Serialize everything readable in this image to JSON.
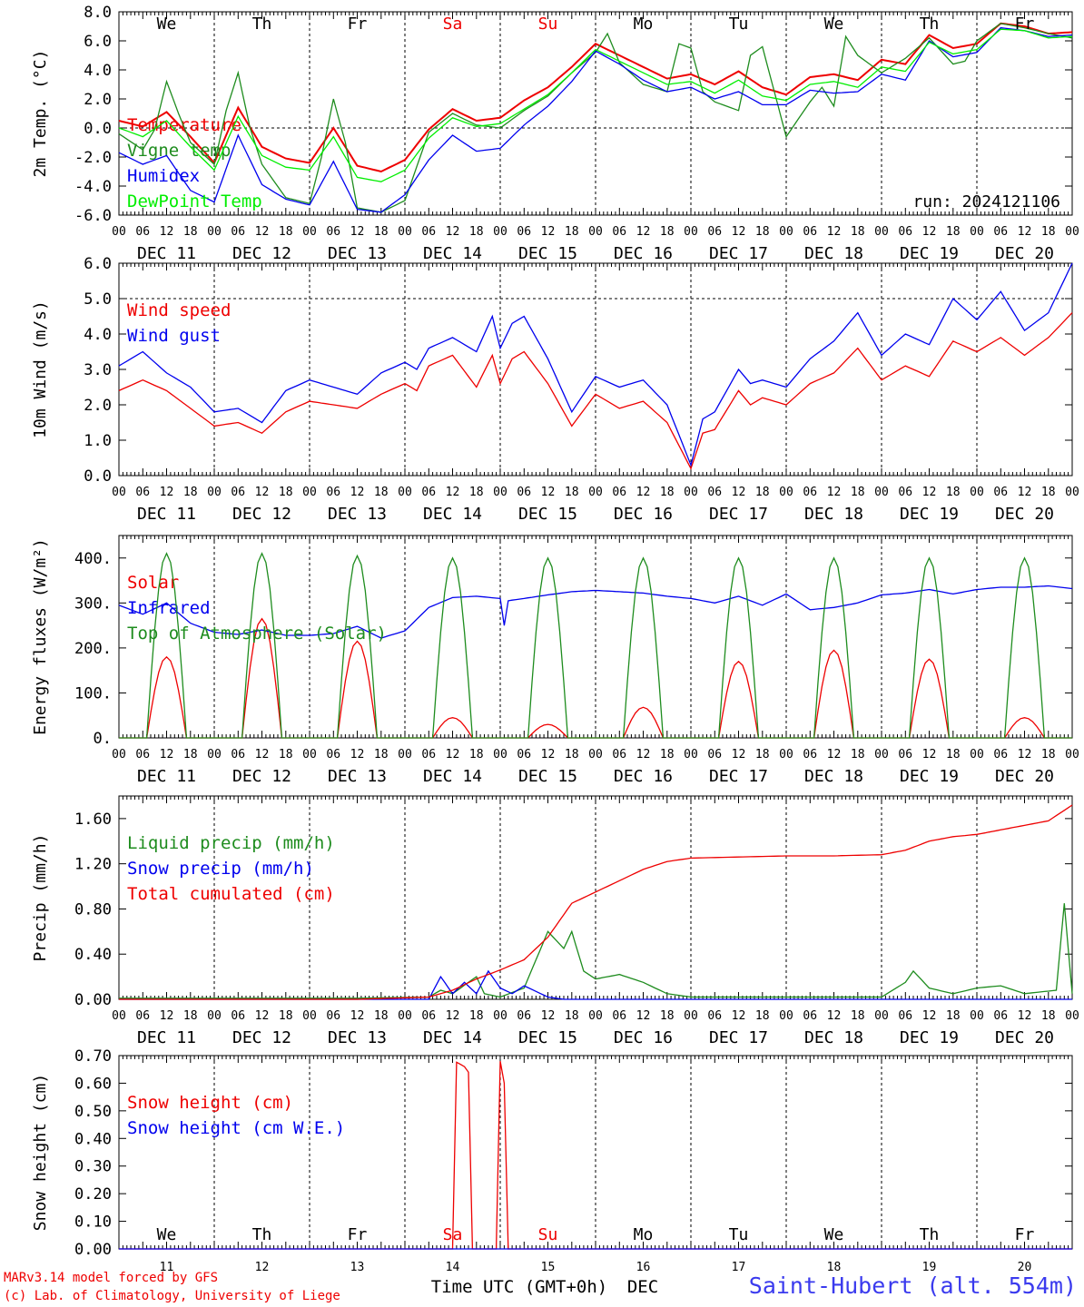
{
  "run_label": "run: 2024121106",
  "station_label": "Saint-Hubert (alt. 554m)",
  "credits": [
    "MARv3.14 model forced by GFS",
    "(c) Lab. of Climatology, University of Liege"
  ],
  "time_axis": {
    "hour_ticks": [
      "00",
      "06",
      "12",
      "18"
    ],
    "last_hour": "00",
    "dates": [
      "DEC 11",
      "DEC 12",
      "DEC 13",
      "DEC 14",
      "DEC 15",
      "DEC 16",
      "DEC 17",
      "DEC 18",
      "DEC 19",
      "DEC 20"
    ],
    "weekdays": [
      "We",
      "Th",
      "Fr",
      "Sa",
      "Su",
      "Mo",
      "Tu",
      "We",
      "Th",
      "Fr"
    ],
    "weekend_indices": [
      3,
      4
    ],
    "day_numbers": [
      "11",
      "12",
      "13",
      "14",
      "15",
      "16",
      "17",
      "18",
      "19",
      "20"
    ],
    "xlabel": "Time UTC (GMT+0h)",
    "month": "DEC"
  },
  "colors": {
    "red": "#ee0000",
    "green": "#1e8c1e",
    "blue": "#0000ee",
    "lime": "#00ee00",
    "axis": "#000000"
  },
  "chart_data": [
    {
      "type": "line",
      "ylabel": "2m Temp. (°C)",
      "ylim": [
        -6,
        8
      ],
      "yticks": [
        -6,
        -4,
        -2,
        0,
        2,
        4,
        6,
        8
      ],
      "ytick_labels": [
        "-6.0",
        "-4.0",
        "-2.0",
        "0.0",
        "2.0",
        "4.0",
        "6.0",
        "8.0"
      ],
      "hline": 0,
      "x_unit": "hours from 2024-12-11 00 UTC",
      "series": [
        {
          "name": "Temperature",
          "color": "red",
          "x": [
            0,
            6,
            12,
            18,
            24,
            30,
            36,
            42,
            48,
            54,
            60,
            66,
            72,
            78,
            84,
            90,
            96,
            102,
            108,
            114,
            120,
            126,
            132,
            138,
            144,
            150,
            156,
            162,
            168,
            174,
            180,
            186,
            192,
            198,
            204,
            210,
            216,
            222,
            228,
            234,
            240
          ],
          "values": [
            0.5,
            0.1,
            1.1,
            -0.6,
            -2.4,
            1.4,
            -1.3,
            -2.1,
            -2.4,
            0.0,
            -2.6,
            -3.0,
            -2.2,
            -0.1,
            1.3,
            0.5,
            0.7,
            1.9,
            2.8,
            4.2,
            5.8,
            5.0,
            4.2,
            3.4,
            3.7,
            3.0,
            3.9,
            2.8,
            2.3,
            3.5,
            3.7,
            3.3,
            4.7,
            4.4,
            6.4,
            5.5,
            5.8,
            7.2,
            7.0,
            6.5,
            6.6
          ]
        },
        {
          "name": "Vigne temp",
          "color": "green",
          "x": [
            0,
            6,
            9,
            12,
            15,
            18,
            24,
            27,
            30,
            33,
            36,
            42,
            48,
            51,
            54,
            57,
            60,
            66,
            72,
            78,
            84,
            90,
            96,
            102,
            108,
            114,
            120,
            123,
            126,
            132,
            138,
            141,
            144,
            147,
            150,
            156,
            159,
            162,
            165,
            168,
            174,
            177,
            180,
            183,
            186,
            192,
            198,
            204,
            210,
            213,
            216,
            222,
            228,
            234,
            240
          ],
          "values": [
            -0.4,
            -1.5,
            -0.1,
            3.2,
            1.0,
            -1.0,
            -2.5,
            1.2,
            3.8,
            0.0,
            -2.5,
            -4.8,
            -5.2,
            -2.0,
            2.0,
            -1.0,
            -5.5,
            -5.8,
            -5.0,
            -0.3,
            1.0,
            0.2,
            0.0,
            1.2,
            2.2,
            3.8,
            5.2,
            6.5,
            4.5,
            3.0,
            2.5,
            5.8,
            5.5,
            2.5,
            1.8,
            1.2,
            5.0,
            5.6,
            2.5,
            -0.6,
            1.8,
            2.8,
            1.5,
            6.3,
            5.0,
            3.8,
            4.8,
            6.2,
            4.4,
            4.6,
            6.0,
            7.2,
            6.9,
            6.5,
            6.2
          ]
        },
        {
          "name": "Humidex",
          "color": "blue",
          "x": [
            0,
            6,
            12,
            18,
            24,
            30,
            36,
            42,
            48,
            54,
            60,
            66,
            72,
            78,
            84,
            90,
            96,
            102,
            108,
            114,
            120,
            126,
            132,
            138,
            144,
            150,
            156,
            162,
            168,
            174,
            180,
            186,
            192,
            198,
            204,
            210,
            216,
            222,
            228,
            234,
            240
          ],
          "values": [
            -1.7,
            -2.5,
            -1.9,
            -4.3,
            -5.1,
            -0.5,
            -3.9,
            -4.9,
            -5.3,
            -2.3,
            -5.6,
            -5.8,
            -4.6,
            -2.2,
            -0.5,
            -1.6,
            -1.4,
            0.2,
            1.5,
            3.2,
            5.3,
            4.4,
            3.3,
            2.5,
            2.8,
            2.0,
            2.5,
            1.6,
            1.6,
            2.6,
            2.4,
            2.5,
            3.7,
            3.3,
            6.0,
            4.9,
            5.2,
            6.9,
            6.7,
            6.3,
            6.4
          ]
        },
        {
          "name": "DewPoint Temp",
          "color": "lime",
          "x": [
            0,
            6,
            12,
            18,
            24,
            30,
            36,
            42,
            48,
            54,
            60,
            66,
            72,
            78,
            84,
            90,
            96,
            102,
            108,
            114,
            120,
            126,
            132,
            138,
            144,
            150,
            156,
            162,
            168,
            174,
            180,
            186,
            192,
            198,
            204,
            210,
            216,
            222,
            228,
            234,
            240
          ],
          "values": [
            0.0,
            -0.6,
            0.5,
            -1.3,
            -2.9,
            0.8,
            -1.9,
            -2.7,
            -2.9,
            -0.6,
            -3.4,
            -3.7,
            -2.9,
            -0.7,
            0.7,
            0.1,
            0.3,
            1.3,
            2.3,
            3.8,
            5.4,
            4.6,
            3.8,
            3.0,
            3.2,
            2.4,
            3.3,
            2.2,
            1.9,
            3.0,
            3.2,
            2.8,
            4.2,
            3.9,
            5.9,
            5.1,
            5.4,
            6.8,
            6.7,
            6.2,
            6.3
          ]
        }
      ]
    },
    {
      "type": "line",
      "ylabel": "10m Wind (m/s)",
      "ylim": [
        0,
        6
      ],
      "yticks": [
        0,
        1,
        2,
        3,
        4,
        5,
        6
      ],
      "ytick_labels": [
        "0.0",
        "1.0",
        "2.0",
        "3.0",
        "4.0",
        "5.0",
        "6.0"
      ],
      "hline": 5,
      "series": [
        {
          "name": "Wind speed",
          "color": "red",
          "x": [
            0,
            6,
            12,
            18,
            24,
            30,
            36,
            42,
            48,
            54,
            60,
            66,
            72,
            75,
            78,
            84,
            90,
            94,
            96,
            99,
            102,
            108,
            114,
            120,
            126,
            132,
            138,
            144,
            147,
            150,
            156,
            159,
            162,
            168,
            174,
            180,
            186,
            192,
            198,
            204,
            210,
            216,
            222,
            228,
            234,
            240
          ],
          "values": [
            2.4,
            2.7,
            2.4,
            1.9,
            1.4,
            1.5,
            1.2,
            1.8,
            2.1,
            2.0,
            1.9,
            2.3,
            2.6,
            2.4,
            3.1,
            3.4,
            2.5,
            3.4,
            2.6,
            3.3,
            3.5,
            2.6,
            1.4,
            2.3,
            1.9,
            2.1,
            1.5,
            0.2,
            1.2,
            1.3,
            2.4,
            2.0,
            2.2,
            2.0,
            2.6,
            2.9,
            3.6,
            2.7,
            3.1,
            2.8,
            3.8,
            3.5,
            3.9,
            3.4,
            3.9,
            4.6
          ]
        },
        {
          "name": "Wind gust",
          "color": "blue",
          "x": [
            0,
            6,
            12,
            18,
            24,
            30,
            36,
            42,
            48,
            54,
            60,
            66,
            72,
            75,
            78,
            84,
            90,
            94,
            96,
            99,
            102,
            108,
            114,
            120,
            126,
            132,
            138,
            144,
            147,
            150,
            156,
            159,
            162,
            168,
            174,
            180,
            186,
            192,
            198,
            204,
            210,
            216,
            222,
            228,
            234,
            240
          ],
          "values": [
            3.1,
            3.5,
            2.9,
            2.5,
            1.8,
            1.9,
            1.5,
            2.4,
            2.7,
            2.5,
            2.3,
            2.9,
            3.2,
            3.0,
            3.6,
            3.9,
            3.5,
            4.5,
            3.6,
            4.3,
            4.5,
            3.3,
            1.8,
            2.8,
            2.5,
            2.7,
            2.0,
            0.3,
            1.6,
            1.8,
            3.0,
            2.6,
            2.7,
            2.5,
            3.3,
            3.8,
            4.6,
            3.4,
            4.0,
            3.7,
            5.0,
            4.4,
            5.2,
            4.1,
            4.6,
            6.0
          ]
        }
      ]
    },
    {
      "type": "line",
      "ylabel": "Energy fluxes (W/m²)",
      "ylim": [
        0,
        450
      ],
      "yticks": [
        0,
        100,
        200,
        300,
        400
      ],
      "ytick_labels": [
        "0.",
        "100.",
        "200.",
        "300.",
        "400."
      ],
      "series": [
        {
          "name": "Solar",
          "color": "red",
          "peaks": [
            180,
            265,
            215,
            45,
            30,
            68,
            170,
            195,
            175,
            45
          ]
        },
        {
          "name": "Infrared",
          "color": "blue",
          "x": [
            0,
            6,
            12,
            18,
            24,
            30,
            36,
            42,
            48,
            54,
            60,
            66,
            72,
            78,
            84,
            90,
            96,
            97,
            98,
            102,
            108,
            114,
            120,
            126,
            132,
            138,
            144,
            150,
            156,
            162,
            168,
            174,
            180,
            186,
            192,
            198,
            204,
            210,
            216,
            222,
            228,
            234,
            240
          ],
          "values": [
            295,
            275,
            300,
            255,
            235,
            230,
            240,
            228,
            228,
            232,
            248,
            222,
            238,
            290,
            312,
            315,
            310,
            250,
            305,
            310,
            318,
            325,
            328,
            325,
            322,
            315,
            310,
            300,
            315,
            295,
            320,
            285,
            290,
            300,
            318,
            322,
            330,
            320,
            330,
            335,
            335,
            338,
            332
          ]
        },
        {
          "name": "Top of Atmosphere (Solar)",
          "color": "green",
          "peaks": [
            410,
            410,
            405,
            400,
            400,
            400,
            400,
            400,
            400,
            400
          ]
        }
      ]
    },
    {
      "type": "line",
      "ylabel": "Precip (mm/h)",
      "ylim": [
        0,
        1.8
      ],
      "yticks": [
        0,
        0.4,
        0.8,
        1.2,
        1.6
      ],
      "ytick_labels": [
        "0.00",
        "0.40",
        "0.80",
        "1.20",
        "1.60"
      ],
      "series": [
        {
          "name": "Liquid precip (mm/h)",
          "color": "green",
          "x": [
            0,
            60,
            78,
            81,
            84,
            90,
            92,
            96,
            102,
            108,
            112,
            114,
            117,
            120,
            126,
            132,
            138,
            144,
            168,
            192,
            198,
            200,
            204,
            210,
            216,
            222,
            228,
            236,
            238,
            240
          ],
          "values": [
            0.01,
            0.01,
            0.02,
            0.08,
            0.05,
            0.2,
            0.05,
            0.02,
            0.1,
            0.6,
            0.45,
            0.6,
            0.25,
            0.18,
            0.22,
            0.15,
            0.05,
            0.02,
            0.02,
            0.02,
            0.15,
            0.25,
            0.1,
            0.05,
            0.1,
            0.12,
            0.05,
            0.08,
            0.85,
            0.05
          ]
        },
        {
          "name": "Snow precip (mm/h)",
          "color": "blue",
          "x": [
            0,
            78,
            81,
            84,
            87,
            90,
            93,
            96,
            99,
            102,
            108,
            112,
            120,
            240
          ],
          "values": [
            0,
            0,
            0.2,
            0.05,
            0.15,
            0.05,
            0.25,
            0.1,
            0.05,
            0.12,
            0.02,
            0,
            0,
            0
          ]
        },
        {
          "name": "Total cumulated (cm)",
          "color": "red",
          "x": [
            0,
            60,
            78,
            84,
            90,
            96,
            102,
            108,
            114,
            120,
            126,
            132,
            138,
            144,
            156,
            168,
            180,
            192,
            198,
            204,
            210,
            216,
            222,
            228,
            234,
            240
          ],
          "values": [
            0,
            0,
            0.02,
            0.08,
            0.18,
            0.26,
            0.35,
            0.55,
            0.85,
            0.95,
            1.05,
            1.15,
            1.22,
            1.25,
            1.26,
            1.27,
            1.27,
            1.28,
            1.32,
            1.4,
            1.44,
            1.46,
            1.5,
            1.54,
            1.58,
            1.72
          ]
        }
      ]
    },
    {
      "type": "line",
      "ylabel": "Snow height (cm)",
      "ylim": [
        0,
        0.7
      ],
      "yticks": [
        0,
        0.1,
        0.2,
        0.3,
        0.4,
        0.5,
        0.6,
        0.7
      ],
      "ytick_labels": [
        "0.00",
        "0.10",
        "0.20",
        "0.30",
        "0.40",
        "0.50",
        "0.60",
        "0.70"
      ],
      "series": [
        {
          "name": "Snow height (cm)",
          "color": "red",
          "x": [
            0,
            84,
            84.5,
            87,
            88,
            88.5,
            95.5,
            96,
            97,
            97.5,
            240
          ],
          "values": [
            0,
            0,
            0.68,
            0.66,
            0.64,
            0,
            0,
            0.68,
            0.6,
            0,
            0
          ]
        },
        {
          "name": "Snow height (cm W.E.)",
          "color": "blue",
          "x": [
            0,
            240
          ],
          "values": [
            0,
            0
          ]
        }
      ]
    }
  ]
}
